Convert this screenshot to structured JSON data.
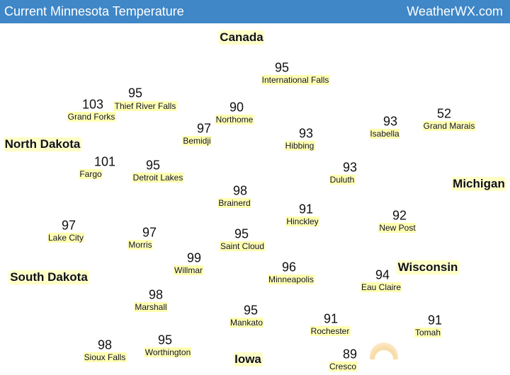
{
  "header": {
    "title": "Current Minnesota Temperature",
    "site": "WeatherWX.com"
  },
  "regions": [
    "Canada",
    "North Dakota",
    "Michigan",
    "South Dakota",
    "Wisconsin",
    "Iowa"
  ],
  "cities": [
    {
      "name": "International Falls",
      "temp": 95
    },
    {
      "name": "Grand Forks",
      "temp": 103
    },
    {
      "name": "Thief River Falls",
      "temp": 95
    },
    {
      "name": "Northome",
      "temp": 90
    },
    {
      "name": "Isabella",
      "temp": 93
    },
    {
      "name": "Grand Marais",
      "temp": 52
    },
    {
      "name": "Bemidji",
      "temp": 97
    },
    {
      "name": "Hibbing",
      "temp": 93
    },
    {
      "name": "Fargo",
      "temp": 101
    },
    {
      "name": "Detroit Lakes",
      "temp": 95
    },
    {
      "name": "Duluth",
      "temp": 93
    },
    {
      "name": "Brainerd",
      "temp": 98
    },
    {
      "name": "Hinckley",
      "temp": 91
    },
    {
      "name": "New Post",
      "temp": 92
    },
    {
      "name": "Lake City",
      "temp": 97
    },
    {
      "name": "Morris",
      "temp": 97
    },
    {
      "name": "Saint Cloud",
      "temp": 95
    },
    {
      "name": "Willmar",
      "temp": 99
    },
    {
      "name": "Minneapolis",
      "temp": 96
    },
    {
      "name": "Eau Claire",
      "temp": 94
    },
    {
      "name": "Marshall",
      "temp": 98
    },
    {
      "name": "Mankato",
      "temp": 95
    },
    {
      "name": "Rochester",
      "temp": 91
    },
    {
      "name": "Tomah",
      "temp": 91
    },
    {
      "name": "Sioux Falls",
      "temp": 98
    },
    {
      "name": "Worthington",
      "temp": 95
    },
    {
      "name": "Cresco",
      "temp": 89
    }
  ]
}
